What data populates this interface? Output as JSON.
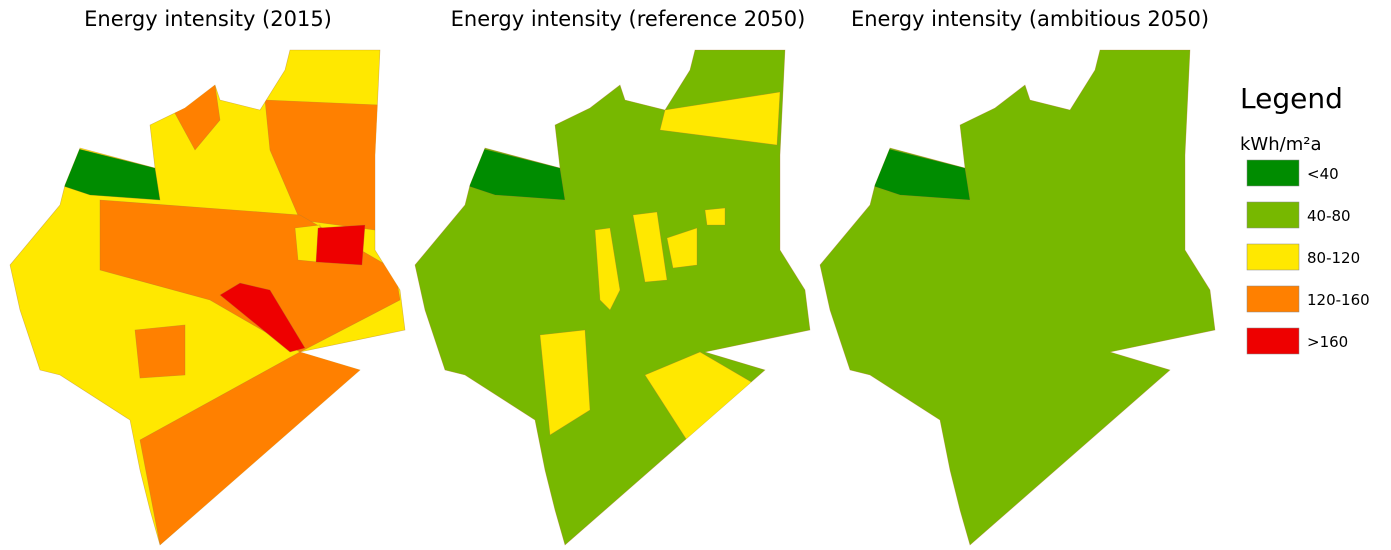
{
  "maps": [
    {
      "title": "Energy intensity (2015)"
    },
    {
      "title": "Energy intensity (reference 2050)"
    },
    {
      "title": "Energy intensity (ambitious 2050)"
    }
  ],
  "legend": {
    "heading": "Legend",
    "unit": "kWh/m²a",
    "items": [
      {
        "label": "<40",
        "color": "#008c00"
      },
      {
        "label": "40-80",
        "color": "#77b800"
      },
      {
        "label": "80-120",
        "color": "#ffe800"
      },
      {
        "label": "120-160",
        "color": "#ff8000"
      },
      {
        "label": ">160",
        "color": "#ee0000"
      }
    ]
  }
}
